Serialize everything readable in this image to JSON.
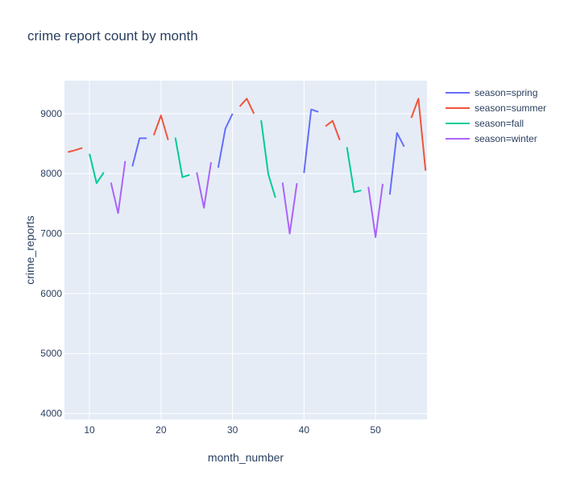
{
  "chart_data": {
    "type": "line",
    "title": "crime report count by month",
    "xlabel": "month_number",
    "ylabel": "crime_reports",
    "xlim": [
      6.5,
      57.2
    ],
    "ylim": [
      3900,
      9550
    ],
    "xticks": [
      10,
      20,
      30,
      40,
      50
    ],
    "yticks": [
      4000,
      5000,
      6000,
      7000,
      8000,
      9000
    ],
    "grid": true,
    "legend_position": "top-right",
    "series": [
      {
        "name": "season=spring",
        "color": "#636efa",
        "segments": [
          [
            [
              16,
              8120
            ],
            [
              17,
              8590
            ],
            [
              18,
              8590
            ]
          ],
          [
            [
              28,
              8100
            ],
            [
              29,
              8750
            ],
            [
              30,
              9000
            ]
          ],
          [
            [
              40,
              8010
            ],
            [
              41,
              9070
            ],
            [
              42,
              9030
            ]
          ],
          [
            [
              52,
              7650
            ],
            [
              53,
              8680
            ],
            [
              54,
              8450
            ]
          ]
        ]
      },
      {
        "name": "season=summer",
        "color": "#ef553b",
        "segments": [
          [
            [
              7,
              8360
            ],
            [
              8,
              8390
            ],
            [
              9,
              8430
            ]
          ],
          [
            [
              19,
              8640
            ],
            [
              20,
              8970
            ],
            [
              21,
              8560
            ]
          ],
          [
            [
              31,
              9120
            ],
            [
              32,
              9250
            ],
            [
              33,
              9000
            ]
          ],
          [
            [
              43,
              8790
            ],
            [
              44,
              8880
            ],
            [
              45,
              8560
            ]
          ],
          [
            [
              55,
              8930
            ],
            [
              56,
              9250
            ],
            [
              57,
              8050
            ]
          ]
        ]
      },
      {
        "name": "season=fall",
        "color": "#00cc96",
        "segments": [
          [
            [
              10,
              8330
            ],
            [
              11,
              7840
            ],
            [
              12,
              8020
            ]
          ],
          [
            [
              22,
              8600
            ],
            [
              23,
              7940
            ],
            [
              24,
              7980
            ]
          ],
          [
            [
              34,
              8890
            ],
            [
              35,
              7990
            ],
            [
              36,
              7600
            ]
          ],
          [
            [
              46,
              8440
            ],
            [
              47,
              7690
            ],
            [
              48,
              7720
            ]
          ]
        ]
      },
      {
        "name": "season=winter",
        "color": "#ab63fa",
        "segments": [
          [
            [
              13,
              7850
            ],
            [
              14,
              7340
            ],
            [
              15,
              8210
            ]
          ],
          [
            [
              25,
              8020
            ],
            [
              26,
              7430
            ],
            [
              27,
              8190
            ]
          ],
          [
            [
              37,
              7850
            ],
            [
              38,
              7000
            ],
            [
              39,
              7840
            ]
          ],
          [
            [
              49,
              7780
            ],
            [
              50,
              6940
            ],
            [
              51,
              7830
            ]
          ]
        ]
      }
    ]
  }
}
